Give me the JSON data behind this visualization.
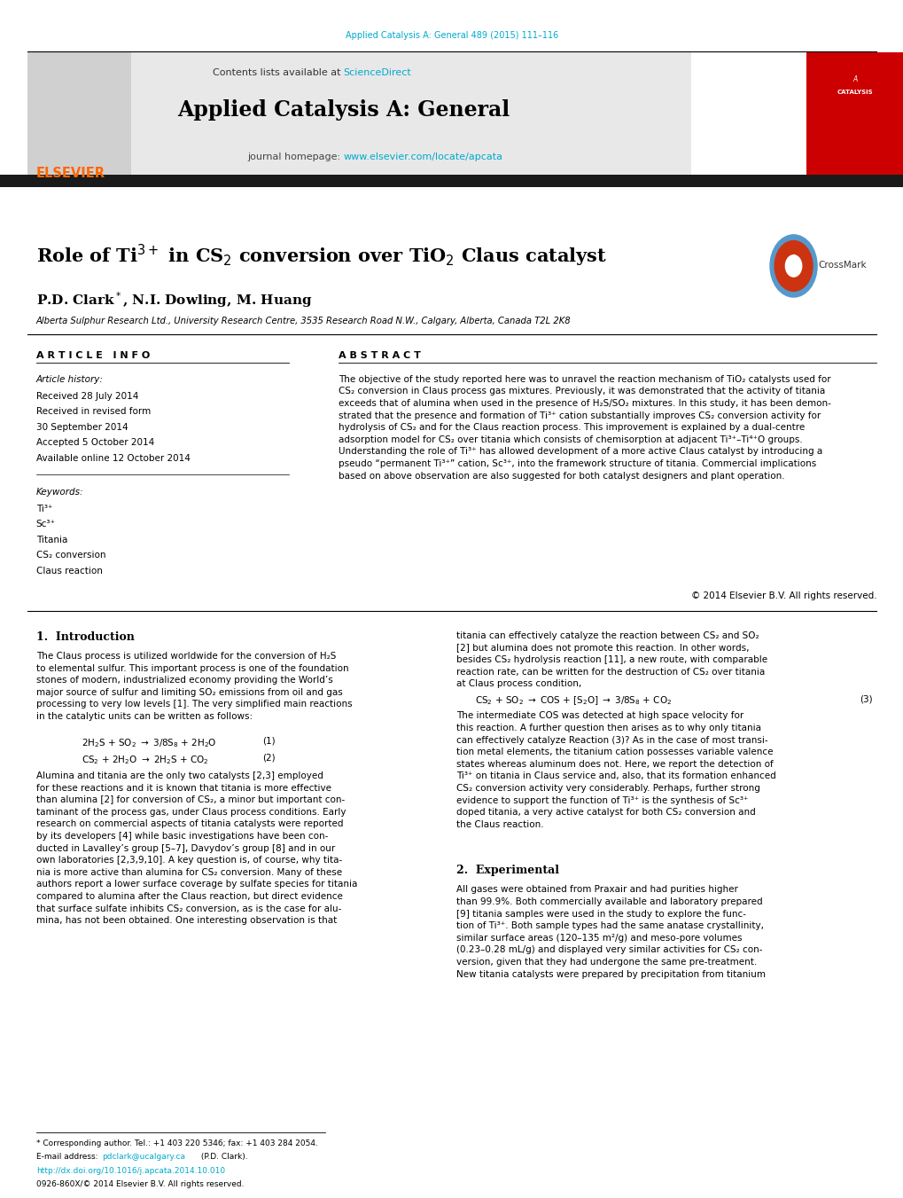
{
  "page_width": 10.2,
  "page_height": 13.51,
  "bg_color": "#ffffff",
  "journal_citation": "Applied Catalysis A: General 489 (2015) 111–116",
  "journal_citation_color": "#00aacc",
  "contents_text": "Contents lists available at ",
  "sciencedirect_text": "ScienceDirect",
  "sciencedirect_color": "#00aacc",
  "journal_name": "Applied Catalysis A: General",
  "journal_homepage_prefix": "journal homepage: ",
  "journal_homepage_url": "www.elsevier.com/locate/apcata",
  "journal_homepage_color": "#00aacc",
  "elsevier_color": "#ff6600",
  "header_bg": "#e8e8e8",
  "dark_bar_color": "#1a1a1a",
  "red_box_color": "#cc0000",
  "affiliation": "Alberta Sulphur Research Ltd., University Research Centre, 3535 Research Road N.W., Calgary, Alberta, Canada T2L 2K8",
  "article_info_header": "A R T I C L E   I N F O",
  "abstract_header": "A B S T R A C T",
  "article_history_label": "Article history:",
  "received1": "Received 28 July 2014",
  "received2": "Received in revised form",
  "received2b": "30 September 2014",
  "accepted": "Accepted 5 October 2014",
  "available": "Available online 12 October 2014",
  "keywords_label": "Keywords:",
  "keyword1": "Ti³⁺",
  "keyword2": "Sc³⁺",
  "keyword3": "Titania",
  "keyword4": "CS₂ conversion",
  "keyword5": "Claus reaction",
  "abstract_text": "The objective of the study reported here was to unravel the reaction mechanism of TiO₂ catalysts used for\nCS₂ conversion in Claus process gas mixtures. Previously, it was demonstrated that the activity of titania\nexceeds that of alumina when used in the presence of H₂S/SO₂ mixtures. In this study, it has been demon-\nstrated that the presence and formation of Ti³⁺ cation substantially improves CS₂ conversion activity for\nhydrolysis of CS₂ and for the Claus reaction process. This improvement is explained by a dual-centre\nadsorption model for CS₂ over titania which consists of chemisorption at adjacent Ti³⁺–Ti⁴⁺O groups.\nUnderstanding the role of Ti³⁺ has allowed development of a more active Claus catalyst by introducing a\npseudo “permanent Ti³⁺” cation, Sc³⁺, into the framework structure of titania. Commercial implications\nbased on above observation are also suggested for both catalyst designers and plant operation.",
  "copyright": "© 2014 Elsevier B.V. All rights reserved.",
  "intro_header": "1.  Introduction",
  "intro_left_p1": "The Claus process is utilized worldwide for the conversion of H₂S\nto elemental sulfur. This important process is one of the foundation\nstones of modern, industrialized economy providing the World’s\nmajor source of sulfur and limiting SO₂ emissions from oil and gas\nprocessing to very low levels [1]. The very simplified main reactions\nin the catalytic units can be written as follows:",
  "eq1_num": "(1)",
  "eq2_num": "(2)",
  "intro_left_p2": "Alumina and titania are the only two catalysts [2,3] employed\nfor these reactions and it is known that titania is more effective\nthan alumina [2] for conversion of CS₂, a minor but important con-\ntaminant of the process gas, under Claus process conditions. Early\nresearch on commercial aspects of titania catalysts were reported\nby its developers [4] while basic investigations have been con-\nducted in Lavalley’s group [5–7], Davydov’s group [8] and in our\nown laboratories [2,3,9,10]. A key question is, of course, why tita-\nnia is more active than alumina for CS₂ conversion. Many of these\nauthors report a lower surface coverage by sulfate species for titania\ncompared to alumina after the Claus reaction, but direct evidence\nthat surface sulfate inhibits CS₂ conversion, as is the case for alu-\nmina, has not been obtained. One interesting observation is that",
  "intro_right_p1": "titania can effectively catalyze the reaction between CS₂ and SO₂\n[2] but alumina does not promote this reaction. In other words,\nbesides CS₂ hydrolysis reaction [11], a new route, with comparable\nreaction rate, can be written for the destruction of CS₂ over titania\nat Claus process condition,",
  "eq3_num": "(3)",
  "intro_right_p2": "The intermediate COS was detected at high space velocity for\nthis reaction. A further question then arises as to why only titania\ncan effectively catalyze Reaction (3)? As in the case of most transi-\ntion metal elements, the titanium cation possesses variable valence\nstates whereas aluminum does not. Here, we report the detection of\nTi³⁺ on titania in Claus service and, also, that its formation enhanced\nCS₂ conversion activity very considerably. Perhaps, further strong\nevidence to support the function of Ti³⁺ is the synthesis of Sc³⁺\ndoped titania, a very active catalyst for both CS₂ conversion and\nthe Claus reaction.",
  "section2_header": "2.  Experimental",
  "section2_text": "All gases were obtained from Praxair and had purities higher\nthan 99.9%. Both commercially available and laboratory prepared\n[9] titania samples were used in the study to explore the func-\ntion of Ti³⁺. Both sample types had the same anatase crystallinity,\nsimilar surface areas (120–135 m²/g) and meso-pore volumes\n(0.23–0.28 mL/g) and displayed very similar activities for CS₂ con-\nversion, given that they had undergone the same pre-treatment.\nNew titania catalysts were prepared by precipitation from titanium",
  "footnote_star": "* Corresponding author. Tel.: +1 403 220 5346; fax: +1 403 284 2054.",
  "footnote_email_prefix": "E-mail address: ",
  "footnote_email": "pdclark@ucalgary.ca",
  "footnote_email_color": "#00aacc",
  "footnote_email_suffix": " (P.D. Clark).",
  "footnote_doi": "http://dx.doi.org/10.1016/j.apcata.2014.10.010",
  "footnote_doi_color": "#00aacc",
  "footnote_issn": "0926-860X/© 2014 Elsevier B.V. All rights reserved."
}
